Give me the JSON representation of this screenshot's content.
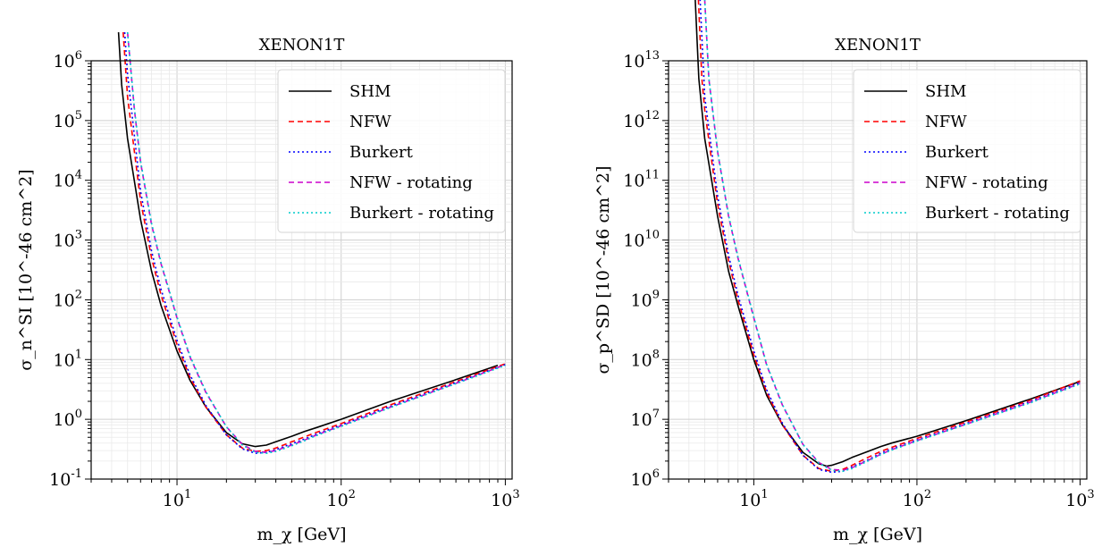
{
  "chart_data": [
    {
      "type": "line",
      "title": "XENON1T",
      "xlabel": "m_χ [GeV]",
      "ylabel": "σ_n^SI [10^-46 cm^2]",
      "xscale": "log",
      "yscale": "log",
      "xlim": [
        3,
        1100
      ],
      "ylim": [
        0.1,
        1000000
      ],
      "xticks": [
        {
          "value": 10,
          "base": "10",
          "exp": "1"
        },
        {
          "value": 100,
          "base": "10",
          "exp": "2"
        },
        {
          "value": 1000,
          "base": "10",
          "exp": "3"
        }
      ],
      "yticks": [
        {
          "value": 0.1,
          "base": "10",
          "exp": "-1"
        },
        {
          "value": 1,
          "base": "10",
          "exp": "0"
        },
        {
          "value": 10,
          "base": "10",
          "exp": "1"
        },
        {
          "value": 100,
          "base": "10",
          "exp": "2"
        },
        {
          "value": 1000,
          "base": "10",
          "exp": "3"
        },
        {
          "value": 10000,
          "base": "10",
          "exp": "4"
        },
        {
          "value": 100000,
          "base": "10",
          "exp": "5"
        },
        {
          "value": 1000000,
          "base": "10",
          "exp": "6"
        }
      ],
      "grid": true,
      "legend": "top-right",
      "series": [
        {
          "name": "SHM",
          "color": "#000000",
          "dash": "solid",
          "x": [
            4.4,
            4.6,
            5,
            6,
            7,
            8,
            10,
            12,
            15,
            20,
            25,
            30,
            35,
            40,
            50,
            60,
            70,
            100,
            200,
            500,
            900
          ],
          "y": [
            3000000,
            400000,
            50000,
            2200,
            300,
            80,
            14,
            4.5,
            1.6,
            0.6,
            0.39,
            0.35,
            0.37,
            0.42,
            0.52,
            0.63,
            0.72,
            1.0,
            2.0,
            4.6,
            8.0
          ]
        },
        {
          "name": "NFW",
          "color": "#ff0000",
          "dash": "6,4",
          "x": [
            4.7,
            5,
            6,
            7,
            8,
            10,
            12,
            15,
            20,
            25,
            30,
            35,
            40,
            50,
            60,
            70,
            100,
            200,
            500,
            1000
          ],
          "y": [
            3000000,
            250000,
            4500,
            500,
            120,
            18,
            5.0,
            1.6,
            0.55,
            0.33,
            0.29,
            0.3,
            0.33,
            0.42,
            0.51,
            0.6,
            0.85,
            1.75,
            4.3,
            8.5
          ]
        },
        {
          "name": "Burkert",
          "color": "#0000ff",
          "dash": "2,3",
          "x": [
            4.8,
            5,
            6,
            7,
            8,
            10,
            12,
            15,
            20,
            25,
            30,
            35,
            40,
            50,
            60,
            70,
            100,
            200,
            500,
            1000
          ],
          "y": [
            3000000,
            600000,
            6500,
            650,
            150,
            21,
            5.5,
            1.7,
            0.55,
            0.32,
            0.27,
            0.28,
            0.31,
            0.39,
            0.47,
            0.56,
            0.8,
            1.65,
            4.1,
            8.2
          ]
        },
        {
          "name": "NFW - rotating",
          "color": "#cc00cc",
          "dash": "6,4",
          "x": [
            5.0,
            5.5,
            6,
            7,
            8,
            10,
            12,
            15,
            20,
            25,
            30,
            35,
            40,
            50,
            60,
            70,
            100,
            200,
            500,
            1000
          ],
          "y": [
            3000000,
            150000,
            20000,
            1800,
            400,
            50,
            11,
            2.8,
            0.75,
            0.38,
            0.29,
            0.28,
            0.3,
            0.37,
            0.45,
            0.54,
            0.78,
            1.6,
            4.0,
            8.2
          ]
        },
        {
          "name": "Burkert - rotating",
          "color": "#00cccc",
          "dash": "2,3",
          "x": [
            5.0,
            5.5,
            6,
            7,
            8,
            10,
            12,
            15,
            20,
            25,
            30,
            35,
            40,
            50,
            60,
            70,
            100,
            200,
            500,
            1000
          ],
          "y": [
            3000000,
            160000,
            21000,
            1900,
            420,
            52,
            11.5,
            2.9,
            0.75,
            0.37,
            0.28,
            0.27,
            0.29,
            0.36,
            0.44,
            0.53,
            0.76,
            1.58,
            3.95,
            8.0
          ]
        }
      ]
    },
    {
      "type": "line",
      "title": "XENON1T",
      "xlabel": "m_χ [GeV]",
      "ylabel": "σ_p^SD [10^-46 cm^2]",
      "xscale": "log",
      "yscale": "log",
      "xlim": [
        3,
        1100
      ],
      "ylim": [
        1000000,
        10000000000000
      ],
      "xticks": [
        {
          "value": 10,
          "base": "10",
          "exp": "1"
        },
        {
          "value": 100,
          "base": "10",
          "exp": "2"
        },
        {
          "value": 1000,
          "base": "10",
          "exp": "3"
        }
      ],
      "yticks": [
        {
          "value": 1000000,
          "base": "10",
          "exp": "6"
        },
        {
          "value": 10000000,
          "base": "10",
          "exp": "7"
        },
        {
          "value": 100000000,
          "base": "10",
          "exp": "8"
        },
        {
          "value": 1000000000,
          "base": "10",
          "exp": "9"
        },
        {
          "value": 10000000000,
          "base": "10",
          "exp": "10"
        },
        {
          "value": 100000000000,
          "base": "10",
          "exp": "11"
        },
        {
          "value": 1000000000000,
          "base": "10",
          "exp": "12"
        },
        {
          "value": 10000000000000,
          "base": "10",
          "exp": "13"
        }
      ],
      "grid": true,
      "legend": "top-right",
      "series": [
        {
          "name": "SHM",
          "color": "#000000",
          "dash": "solid",
          "x": [
            4.3,
            4.6,
            5,
            6,
            7,
            8,
            10,
            12,
            15,
            20,
            25,
            28,
            30,
            35,
            40,
            50,
            60,
            70,
            100,
            200,
            500,
            1000
          ],
          "y": [
            300000000000000,
            5000000000000,
            500000000000,
            25000000000,
            3000000000,
            800000000,
            100000000,
            25000000,
            8000000,
            2800000,
            1800000,
            1650000,
            1700000,
            1950000,
            2300000,
            2900000,
            3500000,
            4000000,
            5200000,
            9500000,
            22000000,
            43000000
          ]
        },
        {
          "name": "NFW",
          "color": "#ff0000",
          "dash": "6,4",
          "x": [
            4.5,
            4.8,
            5,
            6,
            7,
            8,
            10,
            12,
            15,
            20,
            25,
            30,
            35,
            40,
            50,
            60,
            70,
            100,
            200,
            500,
            1000
          ],
          "y": [
            300000000000000,
            5000000000000,
            1500000000000,
            40000000000,
            4500000000,
            1000000000,
            120000000,
            28000000,
            8000000,
            2500000,
            1500000,
            1350000,
            1450000,
            1700000,
            2300000,
            2900000,
            3400000,
            4800000,
            9000000,
            21000000,
            44000000
          ]
        },
        {
          "name": "Burkert",
          "color": "#0000ff",
          "dash": "2,3",
          "x": [
            4.6,
            4.9,
            5,
            6,
            7,
            8,
            10,
            12,
            15,
            20,
            25,
            30,
            35,
            40,
            50,
            60,
            70,
            100,
            200,
            500,
            1000
          ],
          "y": [
            300000000000000,
            8000000000000,
            2500000000000,
            55000000000,
            5500000000,
            1200000000,
            140000000,
            31000000,
            8500000,
            2500000,
            1450000,
            1300000,
            1350000,
            1600000,
            2100000,
            2700000,
            3200000,
            4500000,
            8500000,
            20000000,
            41000000
          ]
        },
        {
          "name": "NFW - rotating",
          "color": "#cc00cc",
          "dash": "6,4",
          "x": [
            4.9,
            5.3,
            6,
            7,
            8,
            10,
            12,
            15,
            20,
            25,
            30,
            35,
            40,
            50,
            60,
            70,
            100,
            200,
            500,
            1000
          ],
          "y": [
            300000000000000,
            5000000000000,
            300000000000,
            25000000000,
            5000000000,
            500000000,
            80000000,
            17000000,
            3800000,
            1900000,
            1450000,
            1400000,
            1550000,
            2050000,
            2600000,
            3100000,
            4400000,
            8300000,
            19500000,
            40000000
          ]
        },
        {
          "name": "Burkert - rotating",
          "color": "#00cccc",
          "dash": "2,3",
          "x": [
            4.9,
            5.3,
            6,
            7,
            8,
            10,
            12,
            15,
            20,
            25,
            30,
            35,
            40,
            50,
            60,
            70,
            100,
            200,
            500,
            1000
          ],
          "y": [
            300000000000000,
            5200000000000,
            310000000000,
            26000000000,
            5200000000,
            520000000,
            82000000,
            17500000,
            3800000,
            1850000,
            1400000,
            1350000,
            1500000,
            2000000,
            2550000,
            3050000,
            4300000,
            8200000,
            19000000,
            39000000
          ]
        }
      ]
    }
  ]
}
